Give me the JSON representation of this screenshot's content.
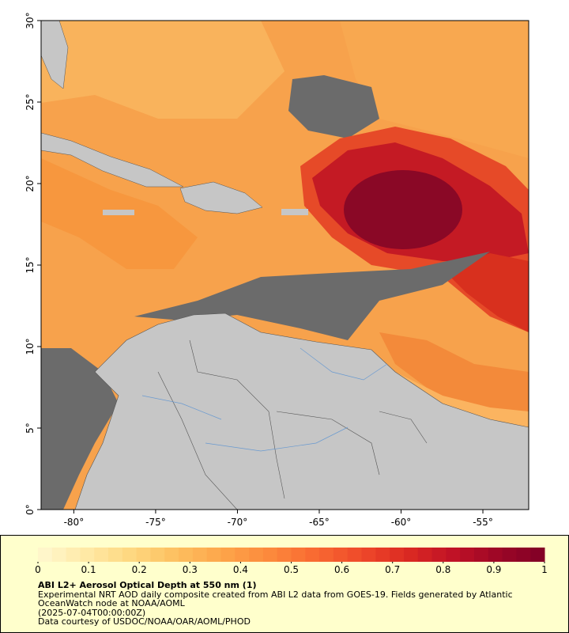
{
  "chart_data": {
    "type": "map",
    "xlim": [
      -82,
      -52.2
    ],
    "ylim": [
      0,
      30
    ],
    "xticks": [
      {
        "value": -80,
        "label": "-80°"
      },
      {
        "value": -75,
        "label": "-75°"
      },
      {
        "value": -70,
        "label": "-70°"
      },
      {
        "value": -65,
        "label": "-65°"
      },
      {
        "value": -60,
        "label": "-60°"
      },
      {
        "value": -55,
        "label": "-55°"
      }
    ],
    "yticks": [
      {
        "value": 0,
        "label": "0°"
      },
      {
        "value": 5,
        "label": "5°"
      },
      {
        "value": 10,
        "label": "10°"
      },
      {
        "value": 15,
        "label": "15°"
      },
      {
        "value": 20,
        "label": "20°"
      },
      {
        "value": 25,
        "label": "25°"
      },
      {
        "value": 30,
        "label": "30°"
      }
    ],
    "colorbar": {
      "clim": [
        0,
        1
      ],
      "ticks": [
        0,
        0.1,
        0.2,
        0.3,
        0.4,
        0.5,
        0.6,
        0.7,
        0.8,
        0.9,
        1
      ],
      "colormap": [
        "#fff8d0",
        "#ffeaa8",
        "#fed880",
        "#fdc060",
        "#fda54a",
        "#fc8a3c",
        "#f96a32",
        "#ef4a2a",
        "#dc2a22",
        "#c01226",
        "#9c0626",
        "#800026"
      ]
    },
    "title": "ABI L2+ Aerosol Optical Depth at 550 nm (1)",
    "captions": [
      "Experimental NRT AOD daily composite created from ABI L2 data from GOES-19. Fields generated by Atlantic OceanWatch node at NOAA/AOML",
      "(2025-07-04T00:00:00Z)",
      "Data courtesy of USDOC/NOAA/OAR/AOML/PHOD"
    ]
  }
}
